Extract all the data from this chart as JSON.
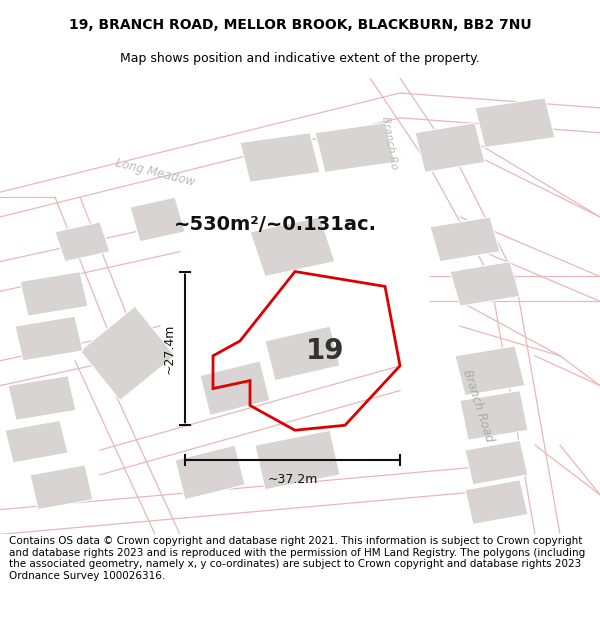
{
  "title_line1": "19, BRANCH ROAD, MELLOR BROOK, BLACKBURN, BB2 7NU",
  "title_line2": "Map shows position and indicative extent of the property.",
  "footer_text": "Contains OS data © Crown copyright and database right 2021. This information is subject to Crown copyright and database rights 2023 and is reproduced with the permission of HM Land Registry. The polygons (including the associated geometry, namely x, y co-ordinates) are subject to Crown copyright and database rights 2023 Ordnance Survey 100026316.",
  "area_label": "~530m²/~0.131ac.",
  "number_label": "19",
  "dim_width": "~37.2m",
  "dim_height": "~27.4m",
  "road_label_branch1": "Branch Road",
  "road_label_branch2": "Branch Ro",
  "street_label_long": "Long Meadow",
  "map_bg": "#faf8f8",
  "building_fill": "#d8d4d4",
  "road_line_color": "#e8b8b8",
  "property_color": "#dd0000",
  "dim_color": "#111111",
  "label_color": "#aaaaaa",
  "title_fontsize": 10,
  "subtitle_fontsize": 9,
  "footer_fontsize": 7.5,
  "area_fontsize": 14,
  "number_fontsize": 20,
  "dim_fontsize": 9,
  "road_fontsize": 8.5
}
